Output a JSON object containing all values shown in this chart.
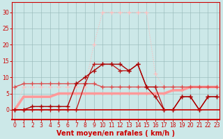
{
  "background_color": "#cce8e8",
  "grid_color": "#99bbbb",
  "x_hours": [
    0,
    1,
    2,
    3,
    4,
    5,
    6,
    7,
    8,
    9,
    10,
    11,
    12,
    13,
    14,
    15,
    16,
    17,
    18,
    19,
    20,
    21,
    22,
    23
  ],
  "series": {
    "light_pink_dotted": {
      "color": "#ffbbbb",
      "linewidth": 0.8,
      "linestyle": "dotted",
      "marker": "+",
      "markersize": 4,
      "markeredgewidth": 0.8,
      "values": [
        0,
        7,
        7,
        7,
        7,
        7,
        7,
        7,
        7,
        20,
        30,
        30,
        30,
        30,
        30,
        30,
        11,
        7,
        7,
        7,
        7,
        7,
        7,
        7
      ]
    },
    "medium_pink_thick": {
      "color": "#ff9999",
      "linewidth": 2.5,
      "linestyle": "solid",
      "marker": "+",
      "markersize": 3,
      "markeredgewidth": 0.8,
      "values": [
        0,
        4,
        4,
        4,
        4,
        5,
        5,
        5,
        5,
        5,
        5,
        5,
        5,
        5,
        5,
        5,
        5,
        5,
        6,
        6,
        7,
        7,
        7,
        7
      ]
    },
    "medium_red_plus": {
      "color": "#dd4444",
      "linewidth": 0.9,
      "linestyle": "solid",
      "marker": "+",
      "markersize": 4,
      "markeredgewidth": 0.9,
      "values": [
        7,
        8,
        8,
        8,
        8,
        8,
        8,
        8,
        8,
        8,
        7,
        7,
        7,
        7,
        7,
        7,
        7,
        7,
        7,
        7,
        7,
        7,
        7,
        7
      ]
    },
    "dark_red_plus": {
      "color": "#aa0000",
      "linewidth": 1.0,
      "linestyle": "solid",
      "marker": "+",
      "markersize": 4,
      "markeredgewidth": 1.0,
      "values": [
        0,
        0,
        1,
        1,
        1,
        1,
        1,
        8,
        10,
        12,
        14,
        14,
        14,
        12,
        14,
        7,
        4,
        0,
        0,
        4,
        4,
        0,
        4,
        4
      ]
    },
    "dark_red_variable": {
      "color": "#bb1111",
      "linewidth": 0.9,
      "linestyle": "solid",
      "marker": "+",
      "markersize": 4,
      "markeredgewidth": 0.9,
      "values": [
        0,
        0,
        0,
        0,
        0,
        0,
        0,
        0,
        8,
        14,
        14,
        14,
        12,
        12,
        14,
        7,
        7,
        0,
        0,
        4,
        4,
        0,
        4,
        4
      ]
    }
  },
  "xlabel": "Vent moyen/en rafales ( km/h )",
  "xlabel_color": "#cc0000",
  "xlabel_fontsize": 7,
  "ylabel_ticks": [
    0,
    5,
    10,
    15,
    20,
    25,
    30
  ],
  "ylim": [
    -3,
    33
  ],
  "xlim": [
    -0.3,
    23.3
  ],
  "tick_color": "#cc0000",
  "tick_fontsize": 5.5,
  "spine_color": "#cc0000"
}
